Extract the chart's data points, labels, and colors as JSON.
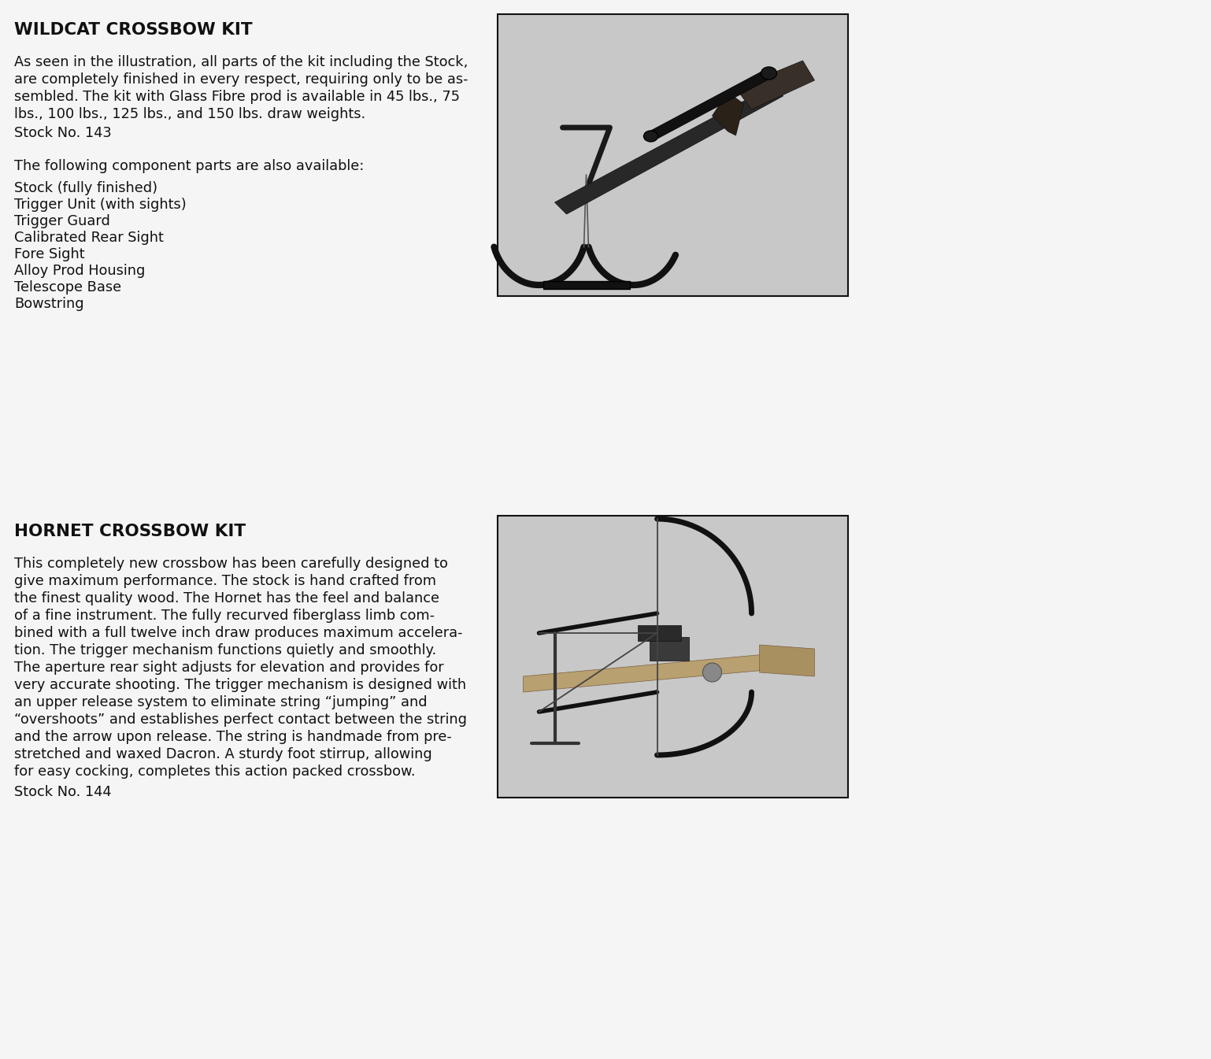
{
  "bg_color": "#f5f5f5",
  "title1": "WILDCAT CROSSBOW KIT",
  "para1_lines": [
    "As seen in the illustration, all parts of the kit including the Stock,",
    "are completely finished in every respect, requiring only to be as-",
    "sembled. The kit with Glass Fibre prod is available in 45 lbs., 75",
    "lbs., 100 lbs., 125 lbs., and 150 lbs. draw weights."
  ],
  "stock1": "Stock No. 143",
  "components_header": "The following component parts are also available:",
  "components": [
    "Stock (fully finished)",
    "Trigger Unit (with sights)",
    "Trigger Guard",
    "Calibrated Rear Sight",
    "Fore Sight",
    "Alloy Prod Housing",
    "Telescope Base",
    "Bowstring"
  ],
  "title2": "HORNET CROSSBOW KIT",
  "para2_lines": [
    "This completely new crossbow has been carefully designed to",
    "give maximum performance. The stock is hand crafted from",
    "the finest quality wood. The Hornet has the feel and balance",
    "of a fine instrument. The fully recurved fiberglass limb com-",
    "bined with a full twelve inch draw produces maximum accelera-",
    "tion. The trigger mechanism functions quietly and smoothly.",
    "The aperture rear sight adjusts for elevation and provides for",
    "very accurate shooting. The trigger mechanism is designed with",
    "an upper release system to eliminate string “jumping” and",
    "“overshoots” and establishes perfect contact between the string",
    "and the arrow upon release. The string is handmade from pre-",
    "stretched and waxed Dacron. A sturdy foot stirrup, allowing",
    "for easy cocking, completes this action packed crossbow."
  ],
  "stock2": "Stock No. 144",
  "text_color": "#111111",
  "box_edge_color": "#111111",
  "img1_fc": "#c8c8c8",
  "img2_fc": "#c8c8c8"
}
